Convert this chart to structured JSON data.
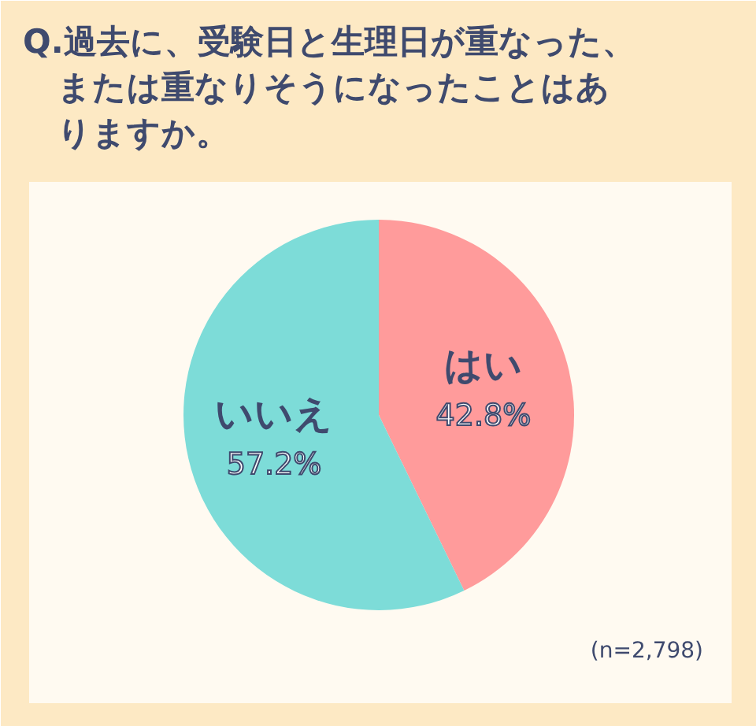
{
  "chart_data": {
    "type": "pie",
    "title": "Q.過去に、受験日と生理日が重なった、または重なりそうになったことはありますか。",
    "categories": [
      "はい",
      "いいえ"
    ],
    "values": [
      42.8,
      57.2
    ],
    "colors": [
      "#ff9b9b",
      "#7ddcd8"
    ],
    "value_labels": [
      "42.8%",
      "57.2%"
    ],
    "annotations": [
      "(n=2,798)"
    ]
  }
}
